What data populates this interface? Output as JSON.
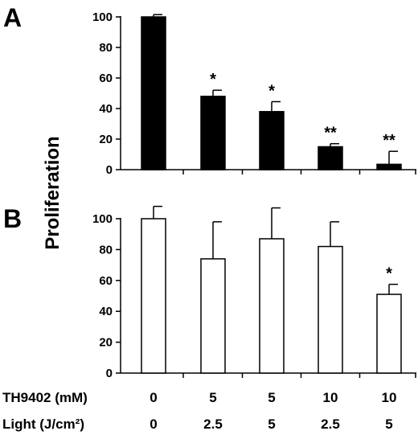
{
  "ylabel": "Proliferation",
  "conditions": {
    "rows": [
      {
        "label": "TH9402 (mM)",
        "values": [
          "0",
          "5",
          "5",
          "10",
          "10"
        ]
      },
      {
        "label": "Light (J/cm²)",
        "values": [
          "0",
          "2.5",
          "5",
          "2.5",
          "5"
        ]
      }
    ]
  },
  "colors": {
    "filled": "#000000",
    "open": "#ffffff",
    "stroke": "#000000"
  },
  "chart_data": [
    {
      "panel": "A",
      "type": "bar",
      "fill": "filled",
      "values": [
        100,
        48,
        38,
        15,
        3.5
      ],
      "error": [
        1.5,
        4,
        6.5,
        2,
        8.5
      ],
      "significance": [
        "",
        "*",
        "*",
        "**",
        "**"
      ],
      "ylim": [
        0,
        100
      ],
      "yticks": [
        0,
        20,
        40,
        60,
        80,
        100
      ],
      "grid": false
    },
    {
      "panel": "B",
      "type": "bar",
      "fill": "open",
      "values": [
        100,
        74,
        87,
        82,
        51
      ],
      "error": [
        8,
        24,
        20,
        16,
        6.5
      ],
      "significance": [
        "",
        "",
        "",
        "",
        "*"
      ],
      "ylim": [
        0,
        100
      ],
      "yticks": [
        0,
        20,
        40,
        60,
        80,
        100
      ],
      "grid": false
    }
  ]
}
